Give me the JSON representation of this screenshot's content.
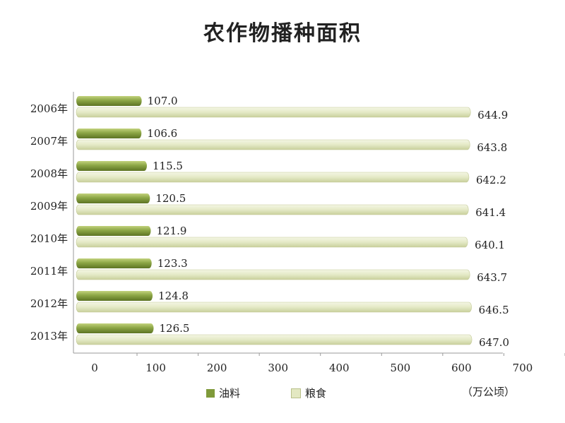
{
  "chart_data": {
    "type": "bar",
    "orientation": "horizontal",
    "title": "农作物播种面积",
    "unit": "（万公顷）",
    "categories": [
      "2006年",
      "2007年",
      "2008年",
      "2009年",
      "2010年",
      "2011年",
      "2012年",
      "2013年"
    ],
    "series": [
      {
        "name": "油料",
        "values": [
          107.0,
          106.6,
          115.5,
          120.5,
          121.9,
          123.3,
          124.8,
          126.5
        ],
        "color": "#7f9a3a"
      },
      {
        "name": "粮食",
        "values": [
          644.9,
          643.8,
          642.2,
          641.4,
          640.1,
          643.7,
          646.5,
          647.0
        ],
        "color": "#e3e8c2"
      }
    ],
    "data_labels": {
      "油料": [
        "107.0",
        "106.6",
        "115.5",
        "120.5",
        "121.9",
        "123.3",
        "124.8",
        "126.5"
      ],
      "粮食": [
        "644.9",
        "643.8",
        "642.2",
        "641.4",
        "640.1",
        "643.7",
        "646.5",
        "647.0"
      ]
    },
    "xlim": [
      0,
      700
    ],
    "xticks": [
      "0",
      "100",
      "200",
      "300",
      "400",
      "500",
      "600",
      "700"
    ],
    "grid": false,
    "legend_position": "bottom"
  }
}
